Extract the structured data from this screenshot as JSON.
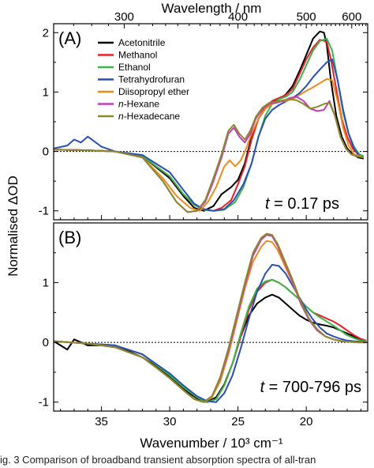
{
  "caption": "ig. 3   Comparison of broadband transient absorption spectra of all-tran",
  "colors": {
    "Acetonitrile": "#000000",
    "Methanol": "#e8202a",
    "Ethanol": "#3cb44b",
    "Tetrahydrofuran": "#2b4fb5",
    "Diisopropyl ether": "#f08a1c",
    "n-Hexane": "#c43db8",
    "n-Hexadecane": "#8a8a2a"
  },
  "chart_data": [
    {
      "type": "line",
      "panel_label": "(A)",
      "annotation": {
        "italic": "t",
        "rest": " = 0.17 ps"
      },
      "xlabel": "Wavenumber / 10³ cm⁻¹",
      "top_axis_label": "Wavelength / nm",
      "top_ticks": [
        300,
        400,
        500,
        600
      ],
      "ylabel": "Normalised ΔOD",
      "xlim": [
        38.5,
        15.5
      ],
      "ylim": [
        -1.15,
        2.15
      ],
      "yticks": [
        -1,
        0,
        1,
        2
      ],
      "xticks": [
        35,
        30,
        25,
        20
      ],
      "zero_line": true,
      "legend_position": "top-left",
      "series": [
        {
          "name": "Acetonitrile",
          "x": [
            38.5,
            36,
            34,
            32,
            30,
            29,
            28.2,
            27.5,
            26.8,
            26.2,
            25.5,
            25,
            24.5,
            24,
            23.5,
            23,
            22.5,
            22,
            21.5,
            21,
            20.5,
            20,
            19.5,
            19,
            18.7,
            18.5,
            18.2,
            17.8,
            17.4,
            17,
            16.6,
            16.2,
            15.8
          ],
          "y": [
            0.03,
            0.02,
            0,
            -0.08,
            -0.45,
            -0.75,
            -0.95,
            -1.0,
            -0.92,
            -0.72,
            -0.6,
            -0.48,
            -0.2,
            0.25,
            0.55,
            0.72,
            0.82,
            0.88,
            0.96,
            1.1,
            1.35,
            1.62,
            1.9,
            2.02,
            2.0,
            1.8,
            1.2,
            0.6,
            0.25,
            0.05,
            -0.05,
            -0.1,
            -0.12
          ]
        },
        {
          "name": "Methanol",
          "x": [
            38.5,
            36,
            34,
            32,
            30,
            29,
            28.2,
            27.5,
            26.8,
            26.2,
            25.5,
            25,
            24.5,
            24,
            23.5,
            23,
            22.5,
            22,
            21.5,
            21,
            20.5,
            20,
            19.5,
            19,
            18.5,
            18.2,
            17.8,
            17.4,
            17,
            16.6,
            16.2,
            15.8
          ],
          "y": [
            0.03,
            0.02,
            0,
            -0.08,
            -0.42,
            -0.72,
            -0.9,
            -0.98,
            -1.0,
            -0.95,
            -0.82,
            -0.55,
            -0.25,
            0.2,
            0.55,
            0.75,
            0.85,
            0.9,
            0.95,
            1.05,
            1.3,
            1.55,
            1.75,
            1.88,
            1.85,
            1.55,
            1.05,
            0.55,
            0.25,
            0.05,
            -0.05,
            -0.08
          ]
        },
        {
          "name": "Ethanol",
          "x": [
            38.5,
            36,
            34,
            32,
            30,
            29,
            28.2,
            27.5,
            26.8,
            26,
            25.2,
            24.6,
            24,
            23.5,
            23,
            22.5,
            22,
            21.5,
            21,
            20.5,
            20,
            19.5,
            19,
            18.5,
            18.1,
            17.7,
            17.3,
            16.9,
            16.5,
            16.1,
            15.8
          ],
          "y": [
            0.03,
            0.02,
            0,
            -0.08,
            -0.42,
            -0.72,
            -0.9,
            -0.98,
            -1.0,
            -0.98,
            -0.85,
            -0.6,
            -0.2,
            0.25,
            0.6,
            0.8,
            0.88,
            0.92,
            1.0,
            1.2,
            1.45,
            1.7,
            1.86,
            1.9,
            1.7,
            1.2,
            0.65,
            0.3,
            0.08,
            -0.05,
            -0.08
          ]
        },
        {
          "name": "Tetrahydrofuran",
          "x": [
            38.5,
            37.5,
            37,
            36.5,
            36,
            35,
            34,
            32,
            30,
            29,
            28.2,
            27.5,
            26.8,
            26,
            25.3,
            24.6,
            24,
            23.5,
            23,
            22.5,
            22,
            21.5,
            21,
            20.5,
            20,
            19.5,
            19,
            18.5,
            18.1,
            17.7,
            17.3,
            16.9,
            16.5,
            16.1,
            15.8
          ],
          "y": [
            0.05,
            0.1,
            0.2,
            0.15,
            0.25,
            0.08,
            0,
            -0.06,
            -0.35,
            -0.65,
            -0.88,
            -0.97,
            -1.0,
            -0.97,
            -0.82,
            -0.55,
            -0.2,
            0.25,
            0.55,
            0.7,
            0.78,
            0.84,
            0.9,
            0.98,
            1.1,
            1.25,
            1.38,
            1.5,
            1.55,
            1.2,
            0.7,
            0.3,
            0.05,
            -0.08,
            -0.1
          ]
        },
        {
          "name": "Diisopropyl ether",
          "x": [
            38.5,
            36,
            34,
            32,
            30.5,
            29.5,
            28.5,
            27.8,
            27.2,
            26.6,
            26,
            25.6,
            25.2,
            24.8,
            24.4,
            24,
            23.5,
            23,
            22.5,
            22,
            21.5,
            21,
            20.5,
            20,
            19.5,
            19,
            18.5,
            18.1,
            17.7,
            17.3,
            16.9,
            16.5,
            16.1,
            15.8
          ],
          "y": [
            0.03,
            0.02,
            0,
            -0.1,
            -0.45,
            -0.75,
            -0.95,
            -1.0,
            -0.85,
            -0.6,
            -0.25,
            -0.15,
            -0.25,
            -0.15,
            0.05,
            0.3,
            0.55,
            0.72,
            0.8,
            0.85,
            0.85,
            0.88,
            0.95,
            1.02,
            1.08,
            1.15,
            1.22,
            1.2,
            0.85,
            0.4,
            0.1,
            -0.05,
            -0.08,
            -0.1
          ]
        },
        {
          "name": "n-Hexane",
          "x": [
            38.5,
            36,
            34,
            32,
            30.5,
            29.5,
            28.7,
            28,
            27.4,
            26.8,
            26.2,
            25.7,
            25.3,
            24.9,
            24.5,
            24.1,
            23.7,
            23.2,
            22.7,
            22.2,
            21.7,
            21.2,
            20.7,
            20.2,
            19.7,
            19.2,
            18.7,
            18.3,
            17.9,
            17.5,
            17.1,
            16.7,
            16.3,
            15.8
          ],
          "y": [
            0.03,
            0.02,
            0,
            -0.1,
            -0.5,
            -0.85,
            -1.02,
            -1.0,
            -0.85,
            -0.5,
            -0.1,
            0.3,
            0.4,
            0.25,
            0.15,
            0.3,
            0.55,
            0.72,
            0.8,
            0.82,
            0.85,
            0.9,
            0.92,
            0.85,
            0.72,
            0.68,
            0.7,
            0.85,
            0.6,
            0.25,
            0.05,
            -0.05,
            -0.08,
            -0.1
          ]
        },
        {
          "name": "n-Hexadecane",
          "x": [
            38.5,
            36,
            34,
            32,
            30.5,
            29.5,
            28.7,
            28,
            27.4,
            26.8,
            26.2,
            25.7,
            25.3,
            24.9,
            24.5,
            24.1,
            23.7,
            23.2,
            22.7,
            22.2,
            21.7,
            21.2,
            20.7,
            20.2,
            19.7,
            19.2,
            18.7,
            18.3,
            17.9,
            17.5,
            17.1,
            16.7,
            16.3,
            15.8
          ],
          "y": [
            0.03,
            0.02,
            0,
            -0.1,
            -0.5,
            -0.85,
            -1.02,
            -1.0,
            -0.82,
            -0.45,
            -0.05,
            0.35,
            0.45,
            0.3,
            0.2,
            0.35,
            0.58,
            0.74,
            0.82,
            0.84,
            0.86,
            0.88,
            0.86,
            0.8,
            0.72,
            0.75,
            0.8,
            0.82,
            0.6,
            0.25,
            0.05,
            -0.05,
            -0.08,
            -0.1
          ]
        }
      ]
    },
    {
      "type": "line",
      "panel_label": "(B)",
      "annotation": {
        "italic": "t",
        "rest": " = 700-796 ps"
      },
      "xlabel": "Wavenumber / 10³ cm⁻¹",
      "ylabel": "Normalised ΔOD",
      "xlim": [
        38.5,
        15.5
      ],
      "ylim": [
        -1.15,
        2.0
      ],
      "yticks": [
        -1,
        0,
        1
      ],
      "xticks": [
        35,
        30,
        25,
        20
      ],
      "zero_line": true,
      "series": [
        {
          "name": "Acetonitrile",
          "x": [
            38.5,
            38,
            37.5,
            37,
            36,
            35,
            34,
            33,
            32,
            31,
            30,
            29,
            28,
            27.3,
            26.6,
            26,
            25.4,
            24.8,
            24.2,
            23.6,
            23,
            22.5,
            22,
            21.5,
            21,
            20.5,
            20,
            19.5,
            19,
            18.5,
            18,
            17.5,
            17,
            16.5,
            16,
            15.6
          ],
          "y": [
            0.02,
            -0.05,
            -0.12,
            0.05,
            -0.05,
            -0.05,
            -0.08,
            -0.15,
            -0.25,
            -0.4,
            -0.58,
            -0.78,
            -0.94,
            -1.0,
            -0.92,
            -0.7,
            -0.35,
            0.1,
            0.45,
            0.65,
            0.75,
            0.8,
            0.75,
            0.65,
            0.55,
            0.45,
            0.38,
            0.33,
            0.3,
            0.28,
            0.25,
            0.2,
            0.15,
            0.1,
            0.05,
            0.02
          ]
        },
        {
          "name": "Methanol",
          "x": [
            38.5,
            36,
            34,
            32,
            30,
            29,
            28,
            27.3,
            26.6,
            26,
            25.4,
            24.8,
            24.2,
            23.6,
            23,
            22.5,
            22,
            21.5,
            21,
            20.5,
            20,
            19.5,
            19,
            18.5,
            18,
            17.5,
            17,
            16.5,
            16,
            15.6
          ],
          "y": [
            0.02,
            -0.02,
            -0.05,
            -0.2,
            -0.55,
            -0.75,
            -0.92,
            -1.0,
            -0.95,
            -0.72,
            -0.35,
            0.1,
            0.55,
            0.85,
            1.0,
            1.05,
            1.0,
            0.92,
            0.82,
            0.72,
            0.6,
            0.5,
            0.45,
            0.4,
            0.35,
            0.28,
            0.2,
            0.12,
            0.06,
            0.03
          ]
        },
        {
          "name": "Ethanol",
          "x": [
            38.5,
            36,
            34,
            32,
            30,
            29,
            28,
            27.3,
            26.6,
            26,
            25.4,
            24.8,
            24.2,
            23.6,
            23,
            22.5,
            22,
            21.5,
            21,
            20.5,
            20,
            19.5,
            19,
            18.5,
            18,
            17.5,
            17,
            16.5,
            16,
            15.6
          ],
          "y": [
            0.02,
            -0.02,
            -0.05,
            -0.2,
            -0.55,
            -0.75,
            -0.92,
            -1.0,
            -0.95,
            -0.72,
            -0.35,
            0.15,
            0.6,
            0.9,
            1.02,
            1.05,
            1.0,
            0.92,
            0.82,
            0.72,
            0.6,
            0.5,
            0.42,
            0.35,
            0.28,
            0.2,
            0.12,
            0.07,
            0.03,
            0.02
          ]
        },
        {
          "name": "Tetrahydrofuran",
          "x": [
            38.5,
            36,
            34,
            32,
            30,
            29,
            28,
            27.3,
            26.6,
            26,
            25.4,
            24.8,
            24.2,
            23.6,
            23,
            22.5,
            22,
            21.5,
            21,
            20.5,
            20,
            19.5,
            19,
            18.5,
            18,
            17.5,
            17,
            16.5,
            16,
            15.6
          ],
          "y": [
            0.02,
            -0.02,
            -0.05,
            -0.2,
            -0.52,
            -0.72,
            -0.9,
            -0.98,
            -1.0,
            -0.85,
            -0.55,
            -0.1,
            0.4,
            0.85,
            1.15,
            1.3,
            1.28,
            1.15,
            0.95,
            0.75,
            0.55,
            0.38,
            0.25,
            0.15,
            0.1,
            0.06,
            0.03,
            0.02,
            0.01,
            0.0
          ]
        },
        {
          "name": "Diisopropyl ether",
          "x": [
            38.5,
            36,
            34,
            32,
            31,
            30,
            29,
            28.2,
            27.5,
            26.9,
            26.3,
            25.7,
            25.1,
            24.5,
            23.9,
            23.3,
            22.9,
            22.5,
            22.1,
            21.6,
            21,
            20.4,
            19.8,
            19.2,
            18.6,
            18,
            17.4,
            16.8,
            16.2,
            15.6
          ],
          "y": [
            0.02,
            -0.02,
            -0.08,
            -0.25,
            -0.42,
            -0.6,
            -0.8,
            -0.95,
            -1.0,
            -0.92,
            -0.65,
            -0.2,
            0.35,
            0.9,
            1.35,
            1.6,
            1.7,
            1.68,
            1.55,
            1.3,
            1.0,
            0.65,
            0.38,
            0.2,
            0.1,
            0.05,
            0.02,
            0.01,
            0.0,
            0.0
          ]
        },
        {
          "name": "n-Hexane",
          "x": [
            38.5,
            36,
            34,
            32,
            31,
            30,
            29,
            28.2,
            27.5,
            26.9,
            26.3,
            25.7,
            25.1,
            24.5,
            23.9,
            23.3,
            22.9,
            22.5,
            22.1,
            21.6,
            21,
            20.4,
            19.8,
            19.2,
            18.6,
            18,
            17.4,
            16.8,
            16.2,
            15.6
          ],
          "y": [
            0.02,
            -0.02,
            -0.08,
            -0.25,
            -0.42,
            -0.6,
            -0.8,
            -0.95,
            -1.0,
            -0.9,
            -0.6,
            -0.15,
            0.4,
            0.95,
            1.45,
            1.72,
            1.8,
            1.78,
            1.62,
            1.35,
            1.02,
            0.65,
            0.38,
            0.2,
            0.1,
            0.05,
            0.02,
            0.01,
            0.0,
            0.0
          ]
        },
        {
          "name": "n-Hexadecane",
          "x": [
            38.5,
            36,
            34,
            32,
            31,
            30,
            29,
            28.2,
            27.5,
            26.9,
            26.3,
            25.7,
            25.1,
            24.5,
            23.9,
            23.3,
            22.9,
            22.5,
            22.1,
            21.6,
            21,
            20.4,
            19.8,
            19.2,
            18.6,
            18,
            17.4,
            16.8,
            16.2,
            15.6
          ],
          "y": [
            0.02,
            -0.02,
            -0.08,
            -0.25,
            -0.42,
            -0.6,
            -0.8,
            -0.95,
            -1.0,
            -0.9,
            -0.58,
            -0.1,
            0.45,
            1.0,
            1.5,
            1.75,
            1.82,
            1.8,
            1.65,
            1.38,
            1.05,
            0.68,
            0.4,
            0.22,
            0.1,
            0.05,
            0.02,
            0.01,
            0.0,
            0.0
          ]
        }
      ]
    }
  ]
}
